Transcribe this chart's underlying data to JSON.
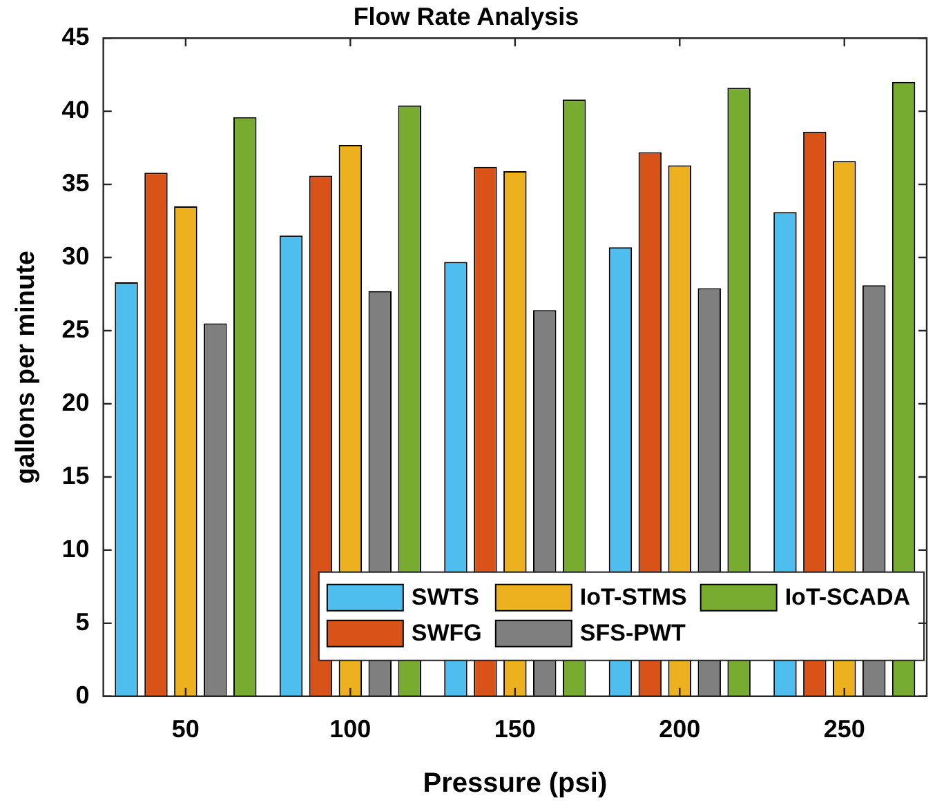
{
  "chart_data": {
    "type": "bar",
    "title": "Flow Rate Analysis",
    "xlabel": "Pressure (psi)",
    "ylabel": "gallons per minute",
    "categories": [
      "50",
      "100",
      "150",
      "200",
      "250"
    ],
    "series": [
      {
        "name": "SWTS",
        "color": "#4dbeee",
        "values": [
          28.3,
          31.5,
          29.7,
          30.7,
          33.1
        ]
      },
      {
        "name": "SWFG",
        "color": "#d95319",
        "values": [
          35.8,
          35.6,
          36.2,
          37.2,
          38.6
        ]
      },
      {
        "name": "IoT-STMS",
        "color": "#edb120",
        "values": [
          33.5,
          37.7,
          35.9,
          36.3,
          36.6
        ]
      },
      {
        "name": "SFS-PWT",
        "color": "#7f7f7f",
        "values": [
          25.5,
          27.7,
          26.4,
          27.9,
          28.1
        ]
      },
      {
        "name": "IoT-SCADA",
        "color": "#77ac30",
        "values": [
          39.6,
          40.4,
          40.8,
          41.6,
          42.0
        ]
      }
    ],
    "ylim": [
      0,
      45
    ],
    "yticks": [
      0,
      5,
      10,
      15,
      20,
      25,
      30,
      35,
      40,
      45
    ],
    "grid": false,
    "legend": "bottom right"
  }
}
